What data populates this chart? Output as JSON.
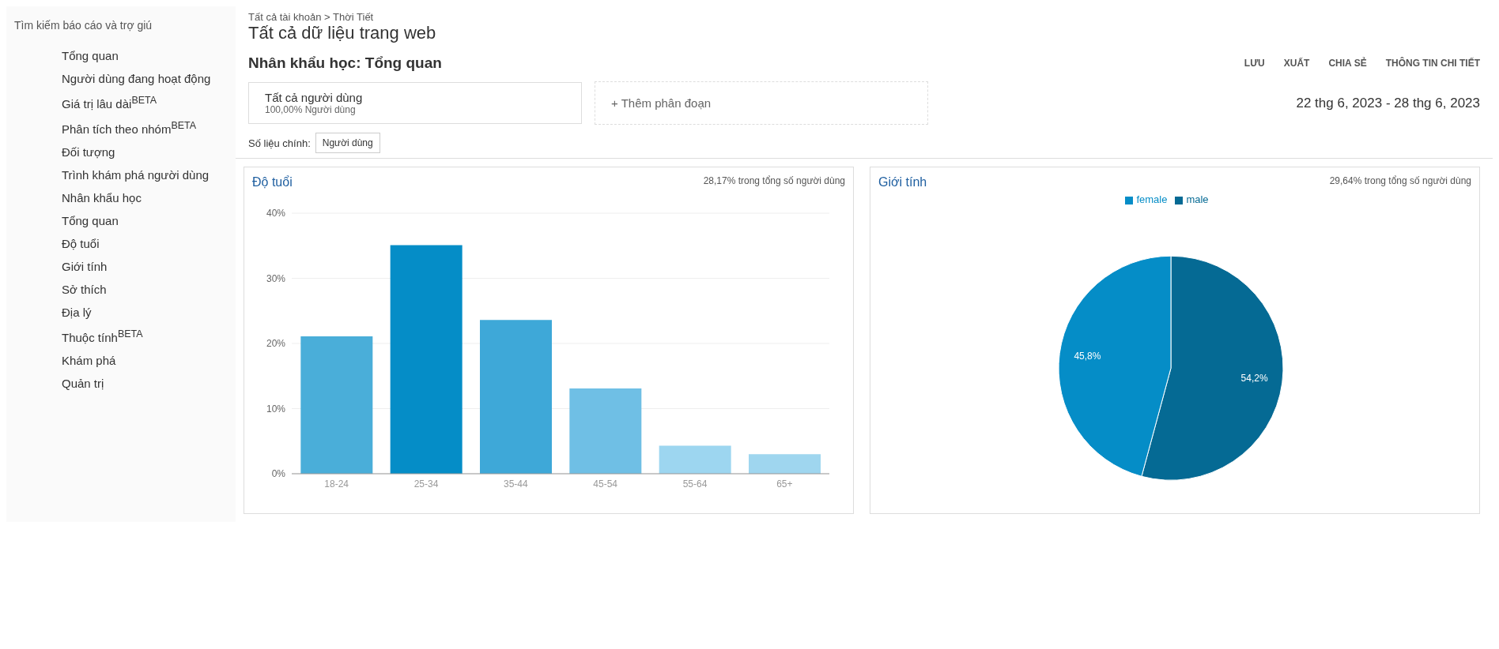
{
  "chart_data": [
    {
      "type": "other",
      "annotations": [
        "Tất cả tài khoản > Thời Tiết",
        "Tất cả dữ liệu trang web",
        "Nhân khẩu học: Tổng quan",
        "LƯU",
        "XUẤT",
        "CHIA SẺ",
        "THÔNG TIN CHI TIẾT",
        "Tất cả người dùng",
        "100,00% Người dùng",
        "+ Thêm phân đoạn",
        "22 thg 6, 2023 - 28 thg 6, 2023",
        "Số liệu chính:",
        "Người dùng"
      ]
    },
    {
      "type": "other",
      "annotations": [
        "Tìm kiếm báo cáo và trợ giú",
        "Tổng quan",
        "Người dùng đang hoạt động",
        "Giá trị lâu dài$^{BETA}$",
        "Phân tích theo nhóm$^{BETA}$",
        "Đối tượng",
        "Trình khám phá người dùng",
        "Nhân khẩu học",
        "Tổng quan",
        "Độ tuổi",
        "Giới tính",
        "Sở thích",
        "Địa lý",
        "Thuộc tính$^{BETA}$",
        "Khám phá",
        "Quản trị"
      ]
    },
    {
      "type": "bar",
      "title": "Độ tuổi",
      "subtitle": "28,17% trong tổng số người dùng",
      "categories": [
        "18-24",
        "25-34",
        "35-44",
        "45-54",
        "55-64",
        "65+"
      ],
      "values": [
        21.1,
        35.1,
        23.6,
        13.1,
        4.3,
        3.0
      ],
      "colors": [
        "#4aaed9",
        "#058dc7",
        "#3ea8d8",
        "#6fbfe5",
        "#9dd6f0",
        "#9fd6ef"
      ],
      "ylim": [
        0,
        40
      ],
      "yticks": [
        {
          "value": 0,
          "label": "0%"
        },
        {
          "value": 10,
          "label": "10%"
        },
        {
          "value": 20,
          "label": "20%"
        },
        {
          "value": 30,
          "label": "30%"
        },
        {
          "value": 40,
          "label": "40%"
        }
      ],
      "grid": "y"
    },
    {
      "type": "pie",
      "title": "Giới tính",
      "subtitle": "29,64% trong tổng số người dùng",
      "categories": [
        "male",
        "female"
      ],
      "values": [
        54.2,
        45.8
      ],
      "value_labels": [
        "54,2%",
        "45,8%"
      ],
      "colors": [
        "#056a94",
        "#058dc7"
      ],
      "legend": "top"
    }
  ]
}
